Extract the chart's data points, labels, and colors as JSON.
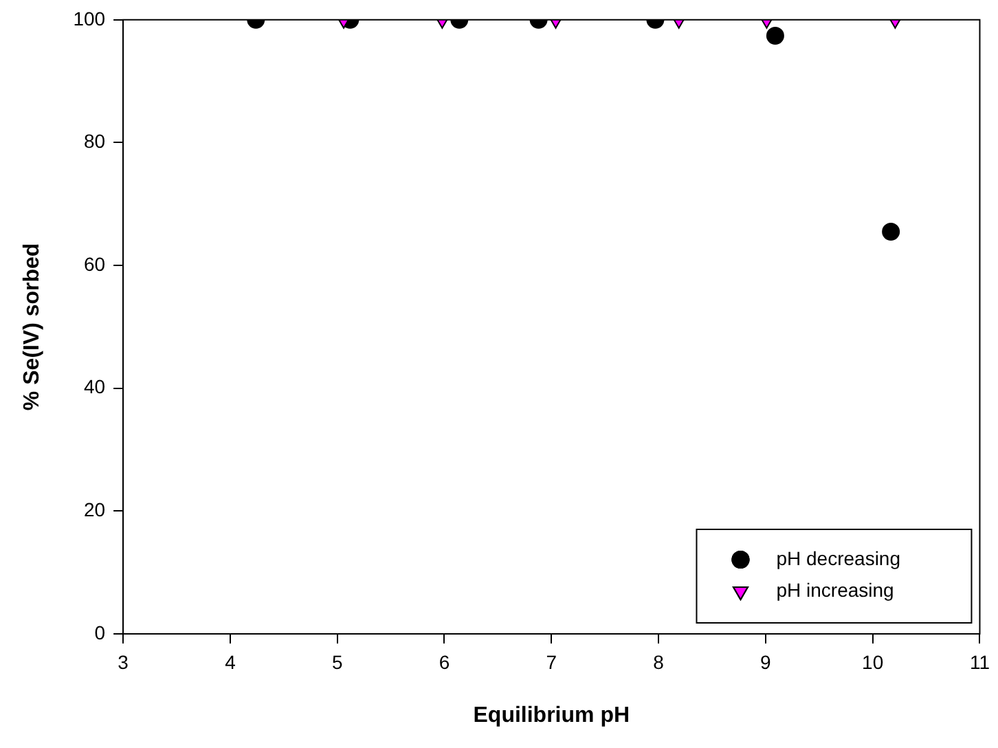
{
  "chart_data": {
    "type": "scatter",
    "xlabel": "Equilibrium pH",
    "ylabel": "% Se(IV) sorbed",
    "xlim": [
      3,
      11
    ],
    "xticks": [
      3,
      4,
      5,
      6,
      7,
      8,
      9,
      10,
      11
    ],
    "ylim": [
      0,
      100
    ],
    "yticks": [
      0,
      20,
      40,
      60,
      80,
      100
    ],
    "grid": false,
    "legend": "bottom right",
    "series": [
      {
        "name": "pH decreasing",
        "color": "#000000",
        "marker": "circle",
        "x": [
          4.24,
          5.12,
          6.14,
          6.88,
          7.97,
          9.09,
          10.17
        ],
        "values": [
          100,
          100,
          100,
          100,
          100,
          97.4,
          65.5
        ]
      },
      {
        "name": "pH increasing",
        "color": "#ff00ff",
        "marker": "triangle",
        "x": [
          5.06,
          5.98,
          7.04,
          8.19,
          9.01,
          10.21
        ],
        "values": [
          100,
          100,
          100,
          100,
          100,
          100
        ]
      }
    ]
  }
}
